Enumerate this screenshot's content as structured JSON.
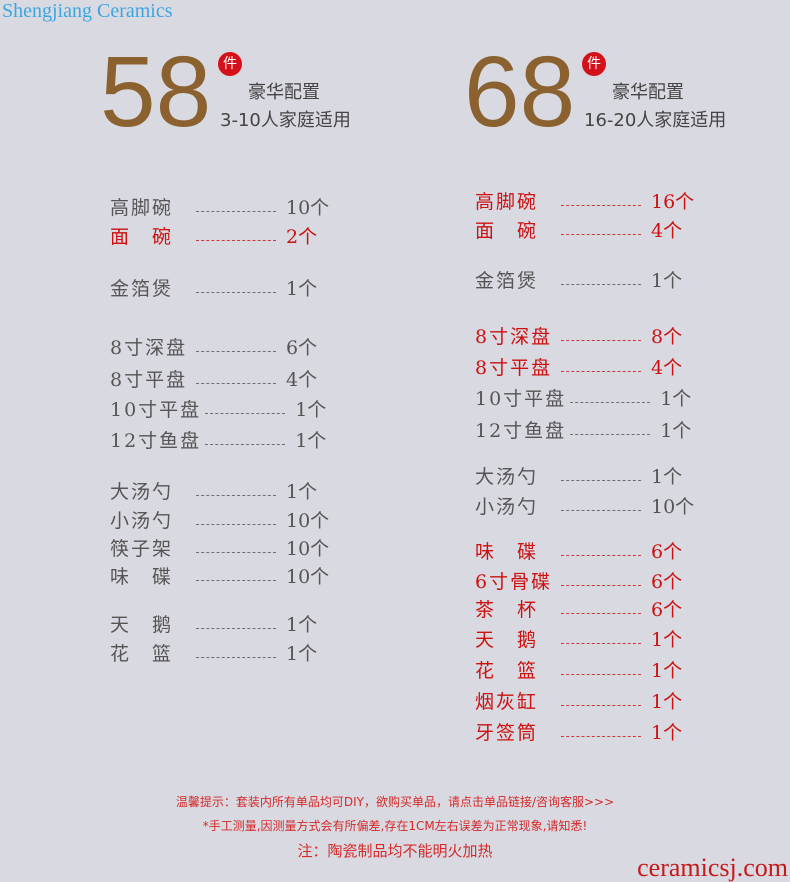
{
  "watermark": "Shengjiang Ceramics",
  "site": "ceramicsj.com",
  "sets": [
    {
      "big": "58",
      "unit": "件",
      "title": "豪华配置",
      "subtitle": "3-10人家庭适用",
      "items": [
        {
          "name": "高脚碗",
          "qty": "10个",
          "red": false
        },
        {
          "name": "面　碗",
          "qty": "2个",
          "red": true
        },
        {
          "name": "金箔煲",
          "qty": "1个",
          "red": false
        },
        {
          "name": "8寸深盘",
          "qty": "6个",
          "red": false
        },
        {
          "name": "8寸平盘",
          "qty": "4个",
          "red": false
        },
        {
          "name": "10寸平盘",
          "qty": "1个",
          "red": false
        },
        {
          "name": "12寸鱼盘",
          "qty": "1个",
          "red": false
        },
        {
          "name": "大汤勺",
          "qty": "1个",
          "red": false
        },
        {
          "name": "小汤勺",
          "qty": "10个",
          "red": false
        },
        {
          "name": "筷子架",
          "qty": "10个",
          "red": false
        },
        {
          "name": "味　碟",
          "qty": "10个",
          "red": false
        },
        {
          "name": "天　鹅",
          "qty": "1个",
          "red": false
        },
        {
          "name": "花　篮",
          "qty": "1个",
          "red": false
        }
      ]
    },
    {
      "big": "68",
      "unit": "件",
      "title": "豪华配置",
      "subtitle": "16-20人家庭适用",
      "items": [
        {
          "name": "高脚碗",
          "qty": "16个",
          "red": true
        },
        {
          "name": "面　碗",
          "qty": "4个",
          "red": true
        },
        {
          "name": "金箔煲",
          "qty": "1个",
          "red": false
        },
        {
          "name": "8寸深盘",
          "qty": "8个",
          "red": true
        },
        {
          "name": "8寸平盘",
          "qty": "4个",
          "red": true
        },
        {
          "name": "10寸平盘",
          "qty": "1个",
          "red": false
        },
        {
          "name": "12寸鱼盘",
          "qty": "1个",
          "red": false
        },
        {
          "name": "大汤勺",
          "qty": "1个",
          "red": false
        },
        {
          "name": "小汤勺",
          "qty": "10个",
          "red": false
        },
        {
          "name": "味　碟",
          "qty": "6个",
          "red": true
        },
        {
          "name": "6寸骨碟",
          "qty": "6个",
          "red": true
        },
        {
          "name": "茶　杯",
          "qty": "6个",
          "red": true
        },
        {
          "name": "天　鹅",
          "qty": "1个",
          "red": true
        },
        {
          "name": "花　篮",
          "qty": "1个",
          "red": true
        },
        {
          "name": "烟灰缸",
          "qty": "1个",
          "red": true
        },
        {
          "name": "牙签筒",
          "qty": "1个",
          "red": true
        }
      ]
    }
  ],
  "notes": [
    "温馨提示：套装内所有单品均可DIY，欲购买单品，请点击单品链接/咨询客服>>>",
    "*手工测量,因测量方式会有所偏差,存在1CM左右误差为正常现象,请知悉!",
    "注：陶瓷制品均不能明火加热"
  ]
}
